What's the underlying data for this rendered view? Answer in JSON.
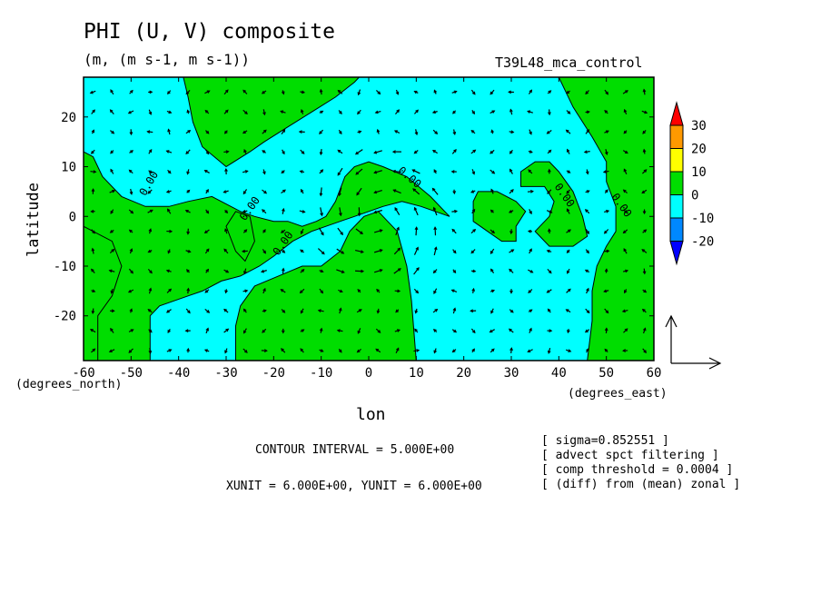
{
  "header": {
    "title": "PHI (U, V) composite",
    "subtitle": "(m, (m s-1, m s-1))",
    "run_name": "T39L48_mca_control"
  },
  "axes": {
    "ylabel": "latitude",
    "xlabel": "lon",
    "y_units": "(degrees_north)",
    "x_units": "(degrees_east)"
  },
  "footer": {
    "contour_interval": "CONTOUR INTERVAL = 5.000E+00",
    "units": "XUNIT = 6.000E+00, YUNIT = 6.000E+00",
    "notes": [
      "[ sigma=0.852551 ]",
      "[ advect spct filtering ]",
      "[ comp threshold = 0.0004 ]",
      "[ (diff) from (mean) zonal ]"
    ]
  },
  "chart_data": {
    "type": "heatmap",
    "xlim": [
      -60,
      60
    ],
    "ylim": [
      -29,
      28
    ],
    "x_ticks": [
      -60,
      -50,
      -40,
      -30,
      -20,
      -10,
      0,
      10,
      20,
      30,
      40,
      50,
      60
    ],
    "y_ticks": [
      -20,
      -10,
      0,
      10,
      20
    ],
    "x_tick_labels": [
      "-60",
      "-50",
      "-40",
      "-30",
      "-20",
      "-10",
      "0",
      "10",
      "20",
      "30",
      "40",
      "50",
      "60"
    ],
    "y_tick_labels": [
      "-20",
      "-10",
      "0",
      "10",
      "20"
    ],
    "contour_labels": [
      "0.00",
      "0.00",
      "0.00",
      "0.00",
      "0.00",
      "0.00",
      "0.00"
    ],
    "colorbar": {
      "levels": [
        "30",
        "20",
        "10",
        "0",
        "-10",
        "-20"
      ],
      "colors": [
        "#ff0000",
        "#ff9900",
        "#ffff00",
        "#00dd00",
        "#00ffff",
        "#0088ff",
        "#0000ff"
      ]
    },
    "fill_colors": {
      "positive": "#00dd00",
      "negative": "#00ffff"
    }
  }
}
